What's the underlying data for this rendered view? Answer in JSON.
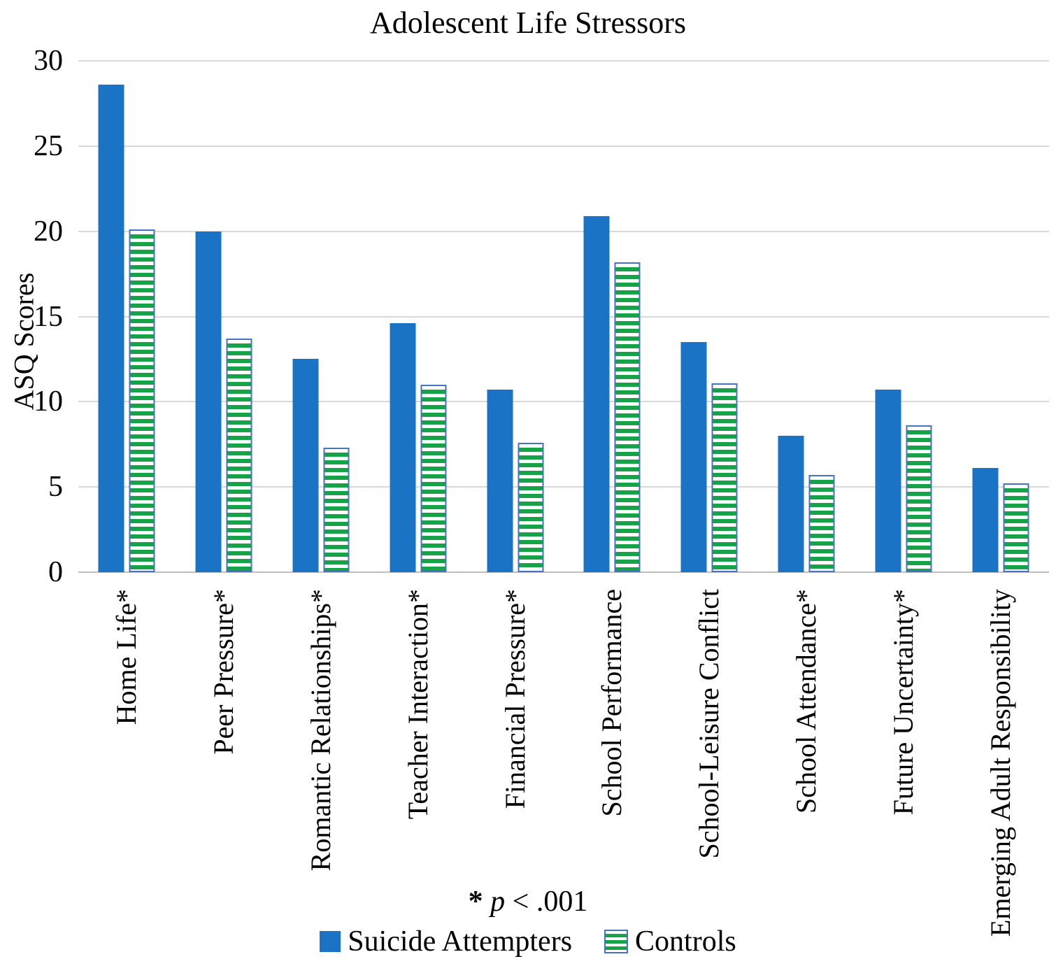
{
  "title": "Adolescent Life Stressors",
  "footnote": {
    "full": "* p < .001",
    "star": "* ",
    "p_symbol": "p",
    "rest": " < .001"
  },
  "colors": {
    "attempters_blue": "#1A73C4",
    "controls_green": "#16A347",
    "controls_border_blue": "#4472C4",
    "gridline": "#D9D9D9",
    "axis_line": "#BFBFBF",
    "text": "#000000",
    "background": "#FFFFFF"
  },
  "chart_data": {
    "type": "bar",
    "title": "Adolescent Life Stressors",
    "xlabel": "",
    "ylabel": "ASQ Scores",
    "ylim": [
      0,
      30
    ],
    "yticks": [
      0,
      5,
      10,
      15,
      20,
      25,
      30
    ],
    "grid": true,
    "legend_position": "bottom",
    "annotation": "* p < .001",
    "categories": [
      "Home Life*",
      "Peer Pressure*",
      "Romantic Relationships*",
      "Teacher Interaction*",
      "Financial Pressure*",
      "School Performance",
      "School-Leisure Conflict",
      "School Attendance*",
      "Future Uncertainty*",
      "Emerging Adult Responsibility"
    ],
    "series": [
      {
        "name": "Suicide Attempters",
        "style": "solid-blue",
        "values": [
          28.6,
          20.0,
          12.5,
          14.6,
          10.7,
          20.9,
          13.5,
          8.0,
          10.7,
          6.1
        ]
      },
      {
        "name": "Controls",
        "style": "green-horizontal-stripes",
        "values": [
          20.1,
          13.7,
          7.3,
          11.0,
          7.6,
          18.2,
          11.1,
          5.7,
          8.6,
          5.2
        ]
      }
    ]
  }
}
